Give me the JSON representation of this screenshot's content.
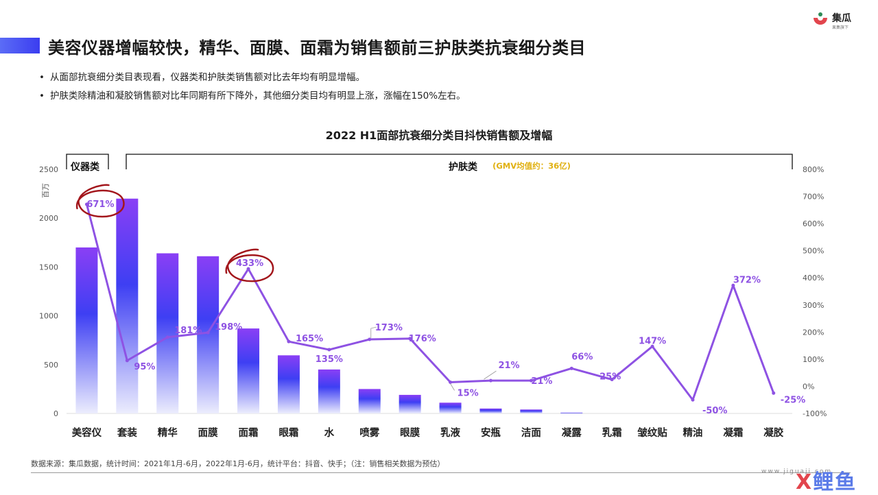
{
  "header": {
    "title": "美容仪器增幅较快，精华、面膜、面霜为销售额前三护肤类抗衰细分类目",
    "logo_name": "集瓜",
    "logo_sub": "果集旗下"
  },
  "bullets": [
    "从面部抗衰细分类目表现看，仪器类和护肤类销售额对比去年均有明显增幅。",
    "护肤类除精油和凝胶销售额对比年同期有所下降外，其他细分类目均有明显上涨，涨幅在150%左右。"
  ],
  "chart_data": {
    "type": "bar",
    "title": "2022 H1面部抗衰细分类目抖快销售额及增幅",
    "ylabel": "百万",
    "ylim": [
      0,
      2500
    ],
    "y2lim": [
      -100,
      800
    ],
    "yticks": [
      "0",
      "500",
      "1000",
      "1500",
      "2000",
      "2500"
    ],
    "y2ticks": [
      "-100%",
      "0%",
      "100%",
      "200%",
      "300%",
      "400%",
      "500%",
      "600%",
      "700%",
      "800%"
    ],
    "categories": [
      "美容仪",
      "套装",
      "精华",
      "面膜",
      "面霜",
      "眼霜",
      "水",
      "喷雾",
      "眼膜",
      "乳液",
      "安瓶",
      "洁面",
      "凝露",
      "乳霜",
      "皱纹贴",
      "精油",
      "凝霜",
      "凝胶"
    ],
    "series": [
      {
        "type": "bar",
        "values": [
          1700,
          2200,
          1640,
          1610,
          870,
          595,
          450,
          250,
          190,
          110,
          50,
          40,
          8,
          0,
          0,
          0,
          0,
          0
        ]
      },
      {
        "type": "line",
        "values": [
          671,
          95,
          181,
          198,
          433,
          165,
          135,
          173,
          176,
          15,
          21,
          21,
          66,
          25,
          147,
          -50,
          372,
          -25
        ],
        "labels": [
          "671%",
          "95%",
          "181%",
          "198%",
          "433%",
          "165%",
          "135%",
          "173%",
          "176%",
          "15%",
          "21%",
          "21%",
          "66%",
          "25%",
          "147%",
          "-50%",
          "372%",
          "-25%"
        ]
      }
    ],
    "groups": [
      {
        "label": "仪器类"
      },
      {
        "label": "护肤类",
        "note": "(GMV均值约：36亿)"
      }
    ],
    "highlighted": [
      "671%",
      "433%"
    ],
    "colors": {
      "bar_top": "#8a3ff5",
      "bar_mid": "#3e3ff3",
      "bar_bottom": "#ecedfd",
      "line": "#8e52e3",
      "circle": "#a3161c",
      "note": "#e0b010"
    }
  },
  "footer": {
    "source": "数据来源：集瓜数据，统计时间：2021年1月-6月，2022年1月-6月，统计平台：抖音、快手；（注：销售相关数据为预估）",
    "url": "www.jiguaji.com"
  }
}
